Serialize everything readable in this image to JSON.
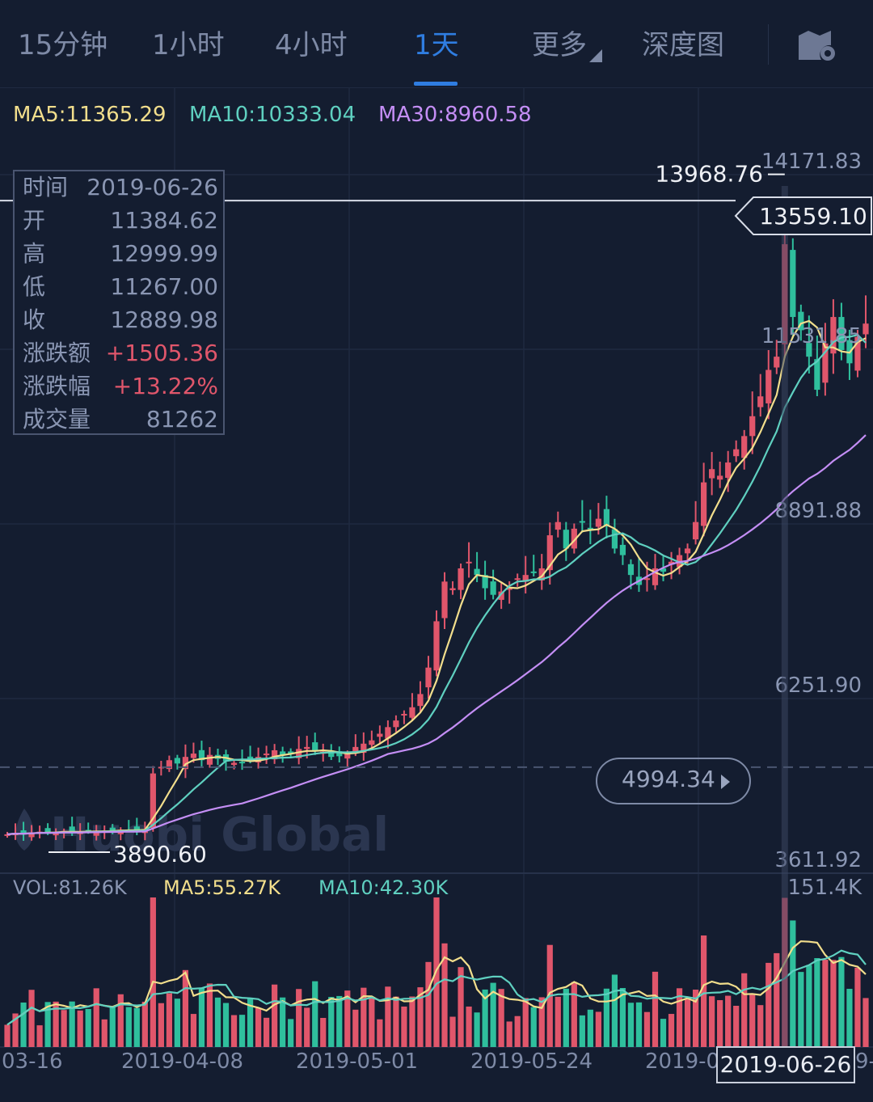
{
  "tabs": [
    {
      "label": "15分钟",
      "active": false
    },
    {
      "label": "1小时",
      "active": false
    },
    {
      "label": "4小时",
      "active": false
    },
    {
      "label": "1天",
      "active": true
    },
    {
      "label": "更多",
      "active": false
    },
    {
      "label": "深度图",
      "active": false
    }
  ],
  "settings_icon": "chart-settings-icon",
  "ma_indicators": {
    "ma5": "MA5:11365.29",
    "ma10": "MA10:10333.04",
    "ma30": "MA30:8960.58"
  },
  "info_box": {
    "rows": [
      {
        "key": "时间",
        "value": "2019-06-26"
      },
      {
        "key": "开",
        "value": "11384.62"
      },
      {
        "key": "高",
        "value": "12999.99"
      },
      {
        "key": "低",
        "value": "11267.00"
      },
      {
        "key": "收",
        "value": "12889.98"
      },
      {
        "key": "涨跌额",
        "value": "+1505.36"
      },
      {
        "key": "涨跌幅",
        "value": "+13.22%"
      },
      {
        "key": "成交量",
        "value": "81262"
      }
    ]
  },
  "crosshair_price": "13559.10",
  "current_price_tag": "4994.34",
  "watermark": "Huobi Global",
  "volume_indicators": {
    "vol": "VOL:81.26K",
    "ma5": "MA5:55.27K",
    "ma10": "MA10:42.30K"
  },
  "selected_date": "2019-06-26",
  "colors": {
    "background": "#141d30",
    "up": "#e0566b",
    "down": "#2fbf9d",
    "ma5": "#f2de8c",
    "ma10": "#5fd0c0",
    "ma30": "#c48ef5",
    "accent": "#2f7de1"
  },
  "chart_data": {
    "type": "candlestick",
    "y_ticks": [
      "14171.83",
      "11531.85",
      "8891.88",
      "6251.90",
      "3611.92"
    ],
    "ylim": [
      3611.92,
      14171.83
    ],
    "max_label": "13968.76",
    "min_label": "3890.60",
    "volume_max_label": "151.4K",
    "x_ticks": [
      "03-16",
      "2019-04-08",
      "2019-05-01",
      "2019-05-24",
      "2019-0",
      "9-"
    ],
    "candles_close": [
      3980,
      4000,
      3990,
      4010,
      4020,
      4005,
      4015,
      4030,
      4010,
      4020,
      4025,
      4030,
      4040,
      4035,
      4050,
      4045,
      4040,
      4060,
      4900,
      5000,
      5100,
      5050,
      5150,
      5200,
      5100,
      5180,
      5120,
      5080,
      5060,
      5070,
      5100,
      5150,
      5200,
      5250,
      5180,
      5200,
      5270,
      5300,
      5250,
      5230,
      5150,
      5160,
      5200,
      5300,
      5350,
      5400,
      5500,
      5600,
      5700,
      5800,
      5900,
      6100,
      6500,
      7200,
      7800,
      7700,
      8000,
      8100,
      7900,
      7700,
      7600,
      7650,
      7700,
      7850,
      7900,
      7950,
      8000,
      8500,
      8700,
      8300,
      8600,
      8700,
      8600,
      8750,
      8650,
      8300,
      8200,
      7900,
      7750,
      7850,
      8000,
      7950,
      8100,
      8200,
      8300,
      8700,
      9300,
      9500,
      9400,
      9600,
      9800,
      10000,
      10300,
      10600,
      11000,
      11200,
      12900,
      11800,
      11600,
      11200,
      10700,
      11400,
      11800,
      11300,
      11100,
      11500,
      11700
    ]
  }
}
